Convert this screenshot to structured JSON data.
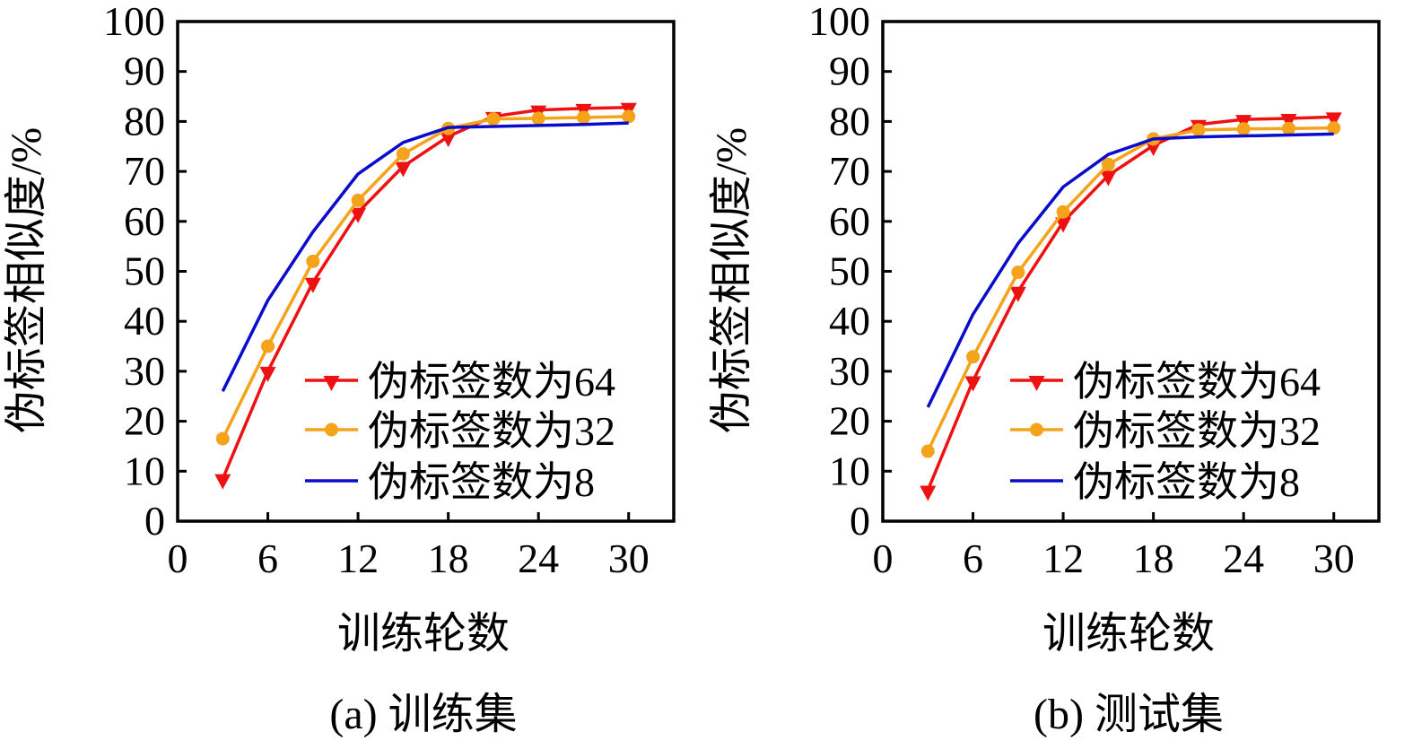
{
  "figure": {
    "colors": {
      "series_64": "#ee1111",
      "series_32": "#f5a31a",
      "series_8": "#0a0ccc",
      "axis": "#000000"
    }
  },
  "chart_data": [
    {
      "type": "line",
      "caption": "(a)  训练集",
      "title": "",
      "xlabel": "训练轮数",
      "ylabel": "伪标签相似度/%",
      "xlim": [
        0,
        33
      ],
      "ylim": [
        0,
        100
      ],
      "xticks": [
        0,
        6,
        12,
        18,
        24,
        30
      ],
      "yticks": [
        0,
        10,
        20,
        30,
        40,
        50,
        60,
        70,
        80,
        90,
        100
      ],
      "grid": false,
      "legend_position": "bottom-right",
      "x": [
        3,
        6,
        9,
        12,
        15,
        18,
        21,
        24,
        27,
        30
      ],
      "series": [
        {
          "name": "伪标签数为64",
          "marker": "triangle-down",
          "color_key": "series_64",
          "values": [
            8.5,
            30.0,
            47.8,
            61.8,
            71.0,
            77.0,
            81.0,
            82.3,
            82.6,
            82.8
          ]
        },
        {
          "name": "伪标签数为32",
          "marker": "circle",
          "color_key": "series_32",
          "values": [
            16.5,
            35.0,
            52.0,
            64.2,
            73.5,
            78.6,
            80.5,
            80.6,
            80.8,
            81.0
          ]
        },
        {
          "name": "伪标签数为8",
          "marker": "none",
          "color_key": "series_8",
          "values": [
            26.0,
            44.2,
            57.9,
            69.5,
            75.8,
            78.8,
            79.0,
            79.2,
            79.4,
            79.7
          ]
        }
      ]
    },
    {
      "type": "line",
      "caption": "(b)  测试集",
      "title": "",
      "xlabel": "训练轮数",
      "ylabel": "伪标签相似度/%",
      "xlim": [
        0,
        33
      ],
      "ylim": [
        0,
        100
      ],
      "xticks": [
        0,
        6,
        12,
        18,
        24,
        30
      ],
      "yticks": [
        0,
        10,
        20,
        30,
        40,
        50,
        60,
        70,
        80,
        90,
        100
      ],
      "grid": false,
      "legend_position": "bottom-right",
      "x": [
        3,
        6,
        9,
        12,
        15,
        18,
        21,
        24,
        27,
        30
      ],
      "series": [
        {
          "name": "伪标签数为64",
          "marker": "triangle-down",
          "color_key": "series_64",
          "values": [
            6.2,
            28.1,
            46.0,
            59.9,
            69.2,
            75.2,
            79.4,
            80.4,
            80.6,
            80.9
          ]
        },
        {
          "name": "伪标签数为32",
          "marker": "circle",
          "color_key": "series_32",
          "values": [
            14.0,
            32.9,
            49.8,
            61.9,
            71.4,
            76.5,
            78.3,
            78.5,
            78.6,
            78.7
          ]
        },
        {
          "name": "伪标签数为8",
          "marker": "none",
          "color_key": "series_8",
          "values": [
            22.8,
            41.4,
            55.6,
            66.9,
            73.4,
            76.5,
            76.9,
            77.1,
            77.3,
            77.5
          ]
        }
      ]
    }
  ]
}
